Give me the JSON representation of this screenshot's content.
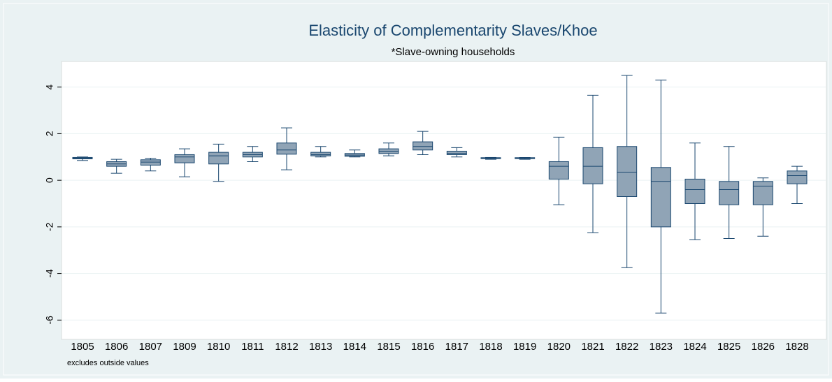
{
  "chart_data": {
    "type": "box",
    "title": "Elasticity of Complementarity Slaves/Khoe",
    "subtitle": "*Slave-owning households",
    "note": "excludes outside values",
    "categories": [
      "1805",
      "1806",
      "1807",
      "1809",
      "1810",
      "1811",
      "1812",
      "1813",
      "1814",
      "1815",
      "1816",
      "1817",
      "1818",
      "1819",
      "1820",
      "1821",
      "1822",
      "1823",
      "1824",
      "1825",
      "1826",
      "1828"
    ],
    "min": [
      0.85,
      0.3,
      0.4,
      0.15,
      -0.05,
      0.8,
      0.45,
      1.0,
      1.0,
      1.05,
      1.1,
      1.0,
      0.9,
      0.9,
      -1.05,
      -2.25,
      -3.75,
      -5.7,
      -2.55,
      -2.5,
      -2.4,
      -1.0
    ],
    "q1": [
      0.92,
      0.6,
      0.65,
      0.75,
      0.7,
      1.0,
      1.12,
      1.05,
      1.03,
      1.15,
      1.3,
      1.1,
      0.93,
      0.93,
      0.05,
      -0.15,
      -0.7,
      -2.0,
      -1.0,
      -1.05,
      -1.05,
      -0.15
    ],
    "median": [
      0.95,
      0.7,
      0.78,
      1.0,
      1.05,
      1.1,
      1.3,
      1.1,
      1.08,
      1.25,
      1.45,
      1.15,
      0.95,
      0.95,
      0.6,
      0.6,
      0.35,
      -0.05,
      -0.4,
      -0.4,
      -0.25,
      0.2
    ],
    "q3": [
      0.98,
      0.8,
      0.88,
      1.1,
      1.2,
      1.2,
      1.6,
      1.2,
      1.15,
      1.35,
      1.65,
      1.25,
      0.97,
      0.97,
      0.8,
      1.4,
      1.45,
      0.55,
      0.05,
      -0.05,
      -0.05,
      0.4
    ],
    "max": [
      1.0,
      0.9,
      0.95,
      1.35,
      1.55,
      1.45,
      2.25,
      1.45,
      1.3,
      1.6,
      2.1,
      1.4,
      0.98,
      0.98,
      1.85,
      3.65,
      4.5,
      4.3,
      1.6,
      1.45,
      0.1,
      0.6
    ],
    "color": "#90a4b6",
    "edge_color": "#1a476f",
    "ylim": [
      -6.83,
      5.1
    ],
    "yticks": [
      -6,
      -4,
      -2,
      0,
      2,
      4
    ],
    "grid": true
  }
}
